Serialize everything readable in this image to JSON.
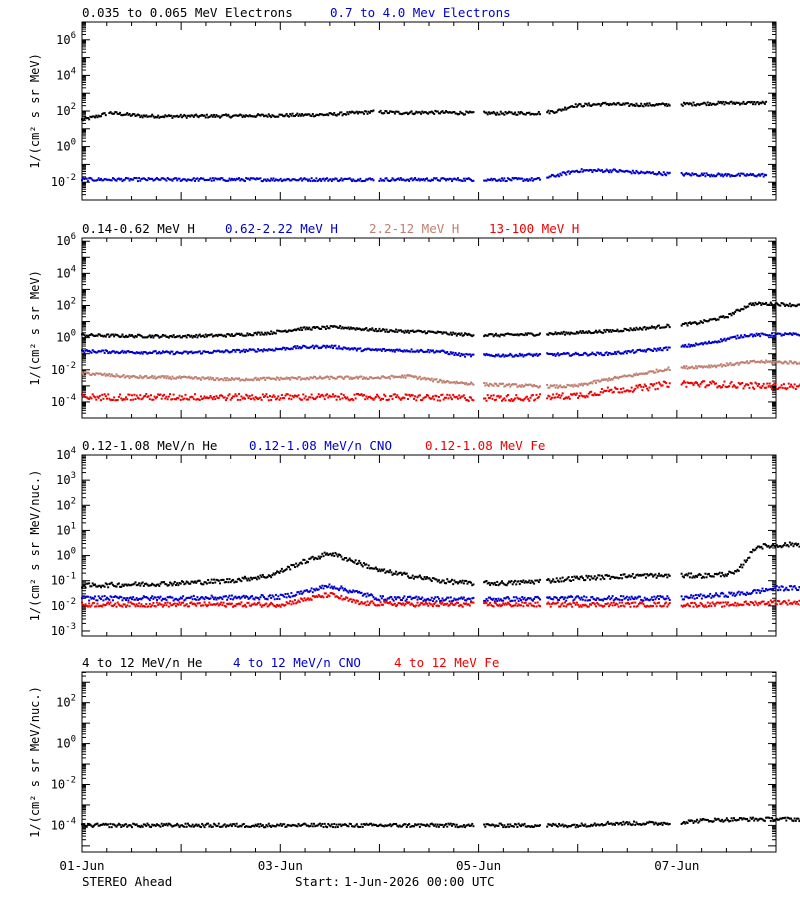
{
  "footer": {
    "spacecraft": "STEREO Ahead",
    "start_label": "Start:",
    "start_value": "1-Jun-2026 00:00 UTC"
  },
  "x_axis": {
    "tick_labels": [
      "01-Jun",
      "03-Jun",
      "05-Jun",
      "07-Jun"
    ],
    "range_days": [
      0,
      7.0
    ]
  },
  "chart_data": [
    {
      "type": "scatter",
      "log_y": true,
      "ylim_exp": [
        -3,
        7
      ],
      "major_exps": [
        -2,
        0,
        2,
        4,
        6
      ],
      "ylabel": "1/(cm² s sr MeV)",
      "series": [
        {
          "name": "0.035 to 0.065 MeV Electrons",
          "color": "#000000",
          "points": [
            [
              0,
              1.5
            ],
            [
              0.12,
              1.65
            ],
            [
              0.28,
              1.9
            ],
            [
              0.45,
              1.8
            ],
            [
              0.6,
              1.72
            ],
            [
              0.9,
              1.7
            ],
            [
              1.5,
              1.72
            ],
            [
              2.0,
              1.75
            ],
            [
              2.5,
              1.8
            ],
            [
              2.8,
              1.9
            ],
            [
              2.95,
              1.95
            ],
            [
              3.2,
              1.9
            ],
            [
              3.6,
              1.92
            ],
            [
              3.9,
              1.88
            ],
            [
              4.3,
              1.87
            ],
            [
              4.6,
              1.88
            ],
            [
              4.8,
              2.0
            ],
            [
              4.95,
              2.3
            ],
            [
              5.3,
              2.4
            ],
            [
              5.5,
              2.35
            ],
            [
              5.9,
              2.35
            ],
            [
              6.2,
              2.4
            ],
            [
              6.5,
              2.45
            ],
            [
              6.9,
              2.45
            ]
          ],
          "gaps": [
            [
              0.25,
              0.27
            ],
            [
              2.95,
              3.0
            ],
            [
              3.95,
              4.05
            ],
            [
              4.63,
              4.68
            ],
            [
              5.93,
              6.04
            ]
          ]
        },
        {
          "name": "0.7 to 4.0 Mev Electrons",
          "color": "#0000cc",
          "points": [
            [
              0,
              -1.85
            ],
            [
              1,
              -1.85
            ],
            [
              2,
              -1.85
            ],
            [
              3,
              -1.85
            ],
            [
              3.8,
              -1.85
            ],
            [
              4.3,
              -1.85
            ],
            [
              4.6,
              -1.85
            ],
            [
              4.8,
              -1.6
            ],
            [
              5.0,
              -1.35
            ],
            [
              5.35,
              -1.35
            ],
            [
              5.6,
              -1.45
            ],
            [
              6.0,
              -1.55
            ],
            [
              6.5,
              -1.6
            ],
            [
              6.9,
              -1.6
            ]
          ],
          "gaps": [
            [
              2.95,
              3.0
            ],
            [
              3.95,
              4.05
            ],
            [
              4.63,
              4.68
            ],
            [
              5.93,
              6.04
            ]
          ]
        }
      ]
    },
    {
      "type": "scatter",
      "log_y": true,
      "ylim_exp": [
        -5,
        6.2
      ],
      "major_exps": [
        -4,
        -2,
        0,
        2,
        4,
        6
      ],
      "ylabel": "1/(cm² s sr MeV)",
      "series": [
        {
          "name": "0.14-0.62 MeV H",
          "color": "#000000",
          "points": [
            [
              0,
              0.15
            ],
            [
              0.5,
              0.1
            ],
            [
              1,
              0.08
            ],
            [
              1.5,
              0.15
            ],
            [
              1.9,
              0.3
            ],
            [
              2.2,
              0.55
            ],
            [
              2.6,
              0.65
            ],
            [
              2.9,
              0.5
            ],
            [
              3.2,
              0.4
            ],
            [
              3.5,
              0.35
            ],
            [
              3.8,
              0.2
            ],
            [
              4.2,
              0.15
            ],
            [
              4.6,
              0.22
            ],
            [
              4.9,
              0.28
            ],
            [
              5.3,
              0.4
            ],
            [
              5.7,
              0.6
            ],
            [
              5.95,
              0.75
            ],
            [
              6.2,
              0.9
            ],
            [
              6.5,
              1.3
            ],
            [
              6.75,
              2.1
            ],
            [
              7,
              2.1
            ],
            [
              7.5,
              1.9
            ],
            [
              7.8,
              1.85
            ]
          ],
          "gaps": [
            [
              3.95,
              4.05
            ],
            [
              4.63,
              4.68
            ],
            [
              5.93,
              6.04
            ]
          ]
        },
        {
          "name": "0.62-2.22 MeV H",
          "color": "#0000cc",
          "points": [
            [
              0,
              -0.85
            ],
            [
              0.5,
              -0.9
            ],
            [
              1,
              -0.95
            ],
            [
              1.5,
              -0.85
            ],
            [
              1.9,
              -0.75
            ],
            [
              2.2,
              -0.6
            ],
            [
              2.5,
              -0.55
            ],
            [
              2.8,
              -0.75
            ],
            [
              3.3,
              -0.8
            ],
            [
              3.6,
              -0.85
            ],
            [
              3.85,
              -1.1
            ],
            [
              4.3,
              -1.1
            ],
            [
              4.8,
              -1.05
            ],
            [
              5.3,
              -1.0
            ],
            [
              5.6,
              -0.85
            ],
            [
              5.95,
              -0.65
            ],
            [
              6.3,
              -0.35
            ],
            [
              6.7,
              0.15
            ],
            [
              7.1,
              0.2
            ],
            [
              7.5,
              0.15
            ],
            [
              7.8,
              0.1
            ]
          ],
          "gaps": [
            [
              3.95,
              4.05
            ],
            [
              4.63,
              4.68
            ],
            [
              5.93,
              6.04
            ]
          ]
        },
        {
          "name": "2.2-12 MeV H",
          "color": "#c08070",
          "points": [
            [
              0,
              -2.2
            ],
            [
              0.5,
              -2.45
            ],
            [
              1,
              -2.5
            ],
            [
              1.5,
              -2.6
            ],
            [
              2,
              -2.55
            ],
            [
              2.5,
              -2.5
            ],
            [
              3,
              -2.5
            ],
            [
              3.3,
              -2.4
            ],
            [
              3.6,
              -2.7
            ],
            [
              4.0,
              -2.9
            ],
            [
              4.5,
              -3.0
            ],
            [
              4.8,
              -3.05
            ],
            [
              5.0,
              -3.0
            ],
            [
              5.3,
              -2.6
            ],
            [
              5.6,
              -2.3
            ],
            [
              5.95,
              -1.9
            ],
            [
              6.4,
              -1.75
            ],
            [
              6.8,
              -1.5
            ],
            [
              7.2,
              -1.55
            ],
            [
              7.8,
              -1.6
            ]
          ],
          "gaps": [
            [
              3.95,
              4.05
            ],
            [
              4.63,
              4.68
            ],
            [
              5.93,
              6.04
            ]
          ]
        },
        {
          "name": "13-100 MeV H",
          "color": "#ee0000",
          "points": [
            [
              0,
              -3.7
            ],
            [
              1,
              -3.7
            ],
            [
              2,
              -3.7
            ],
            [
              3,
              -3.7
            ],
            [
              3.7,
              -3.75
            ],
            [
              4.5,
              -3.75
            ],
            [
              5.0,
              -3.6
            ],
            [
              5.3,
              -3.3
            ],
            [
              5.5,
              -3.2
            ],
            [
              5.7,
              -3.1
            ],
            [
              5.95,
              -2.85
            ],
            [
              6.4,
              -2.9
            ],
            [
              6.8,
              -3.0
            ],
            [
              7.2,
              -3.05
            ],
            [
              7.8,
              -3.1
            ]
          ],
          "gaps": [
            [
              3.95,
              4.05
            ],
            [
              4.63,
              4.68
            ],
            [
              5.93,
              6.04
            ]
          ]
        }
      ]
    },
    {
      "type": "scatter",
      "log_y": true,
      "ylim_exp": [
        -3.2,
        4
      ],
      "major_exps": [
        -3,
        -2,
        -1,
        0,
        1,
        2,
        3,
        4
      ],
      "ylabel": "1/(cm² s sr MeV/nuc.)",
      "series": [
        {
          "name": "0.12-1.08 MeV/n He",
          "color": "#000000",
          "points": [
            [
              0,
              -1.2
            ],
            [
              0.5,
              -1.15
            ],
            [
              1,
              -1.1
            ],
            [
              1.5,
              -1.0
            ],
            [
              1.9,
              -0.8
            ],
            [
              2.2,
              -0.3
            ],
            [
              2.5,
              0.1
            ],
            [
              2.8,
              -0.3
            ],
            [
              3.0,
              -0.6
            ],
            [
              3.3,
              -0.8
            ],
            [
              3.6,
              -1.0
            ],
            [
              3.9,
              -1.1
            ],
            [
              4.3,
              -1.1
            ],
            [
              4.7,
              -1.0
            ],
            [
              5.0,
              -0.9
            ],
            [
              5.3,
              -0.85
            ],
            [
              5.6,
              -0.8
            ],
            [
              5.95,
              -0.8
            ],
            [
              6.3,
              -0.8
            ],
            [
              6.6,
              -0.7
            ],
            [
              6.8,
              0.35
            ],
            [
              7.2,
              0.45
            ],
            [
              7.6,
              0.35
            ],
            [
              7.85,
              0.1
            ]
          ],
          "gaps": [
            [
              3.95,
              4.05
            ],
            [
              4.63,
              4.68
            ],
            [
              5.93,
              6.04
            ]
          ]
        },
        {
          "name": "0.12-1.08 MeV/n CNO",
          "color": "#0000cc",
          "points": [
            [
              0,
              -1.7
            ],
            [
              1,
              -1.7
            ],
            [
              2.0,
              -1.65
            ],
            [
              2.3,
              -1.4
            ],
            [
              2.5,
              -1.2
            ],
            [
              2.7,
              -1.4
            ],
            [
              3.0,
              -1.7
            ],
            [
              4.0,
              -1.75
            ],
            [
              5.0,
              -1.7
            ],
            [
              6.0,
              -1.7
            ],
            [
              6.7,
              -1.5
            ],
            [
              7.0,
              -1.3
            ],
            [
              7.5,
              -1.3
            ],
            [
              7.85,
              -1.45
            ]
          ],
          "gaps": [
            [
              3.95,
              4.05
            ],
            [
              4.63,
              4.68
            ],
            [
              5.93,
              6.04
            ]
          ]
        },
        {
          "name": "0.12-1.08 MeV Fe",
          "color": "#ee0000",
          "points": [
            [
              0,
              -1.95
            ],
            [
              1,
              -1.95
            ],
            [
              2,
              -1.95
            ],
            [
              2.5,
              -1.55
            ],
            [
              2.8,
              -1.9
            ],
            [
              3.5,
              -1.95
            ],
            [
              4.5,
              -1.95
            ],
            [
              5.5,
              -1.95
            ],
            [
              6.5,
              -1.95
            ],
            [
              7.0,
              -1.85
            ],
            [
              7.85,
              -1.95
            ]
          ],
          "gaps": [
            [
              3.95,
              4.05
            ],
            [
              4.63,
              4.68
            ],
            [
              5.93,
              6.04
            ]
          ]
        }
      ]
    },
    {
      "type": "scatter",
      "log_y": true,
      "ylim_exp": [
        -5.3,
        3.5
      ],
      "major_exps": [
        -4,
        -2,
        0,
        2
      ],
      "ylabel": "1/(cm² s sr MeV/nuc.)",
      "series": [
        {
          "name": "4 to 12 MeV/n He",
          "color": "#000000",
          "points": [
            [
              0,
              -4
            ],
            [
              2,
              -4
            ],
            [
              4,
              -4
            ],
            [
              5.0,
              -4
            ],
            [
              5.3,
              -3.9
            ],
            [
              5.9,
              -3.9
            ],
            [
              6.3,
              -3.75
            ],
            [
              6.7,
              -3.7
            ],
            [
              7.2,
              -3.7
            ],
            [
              7.85,
              -3.75
            ]
          ],
          "gaps": [
            [
              3.95,
              4.05
            ],
            [
              4.63,
              4.68
            ],
            [
              5.93,
              6.04
            ]
          ]
        },
        {
          "name": "4 to 12 MeV/n CNO",
          "color": "#0000cc",
          "points": [],
          "gaps": []
        },
        {
          "name": "4 to 12 MeV Fe",
          "color": "#ee0000",
          "points": [],
          "gaps": []
        }
      ]
    }
  ]
}
